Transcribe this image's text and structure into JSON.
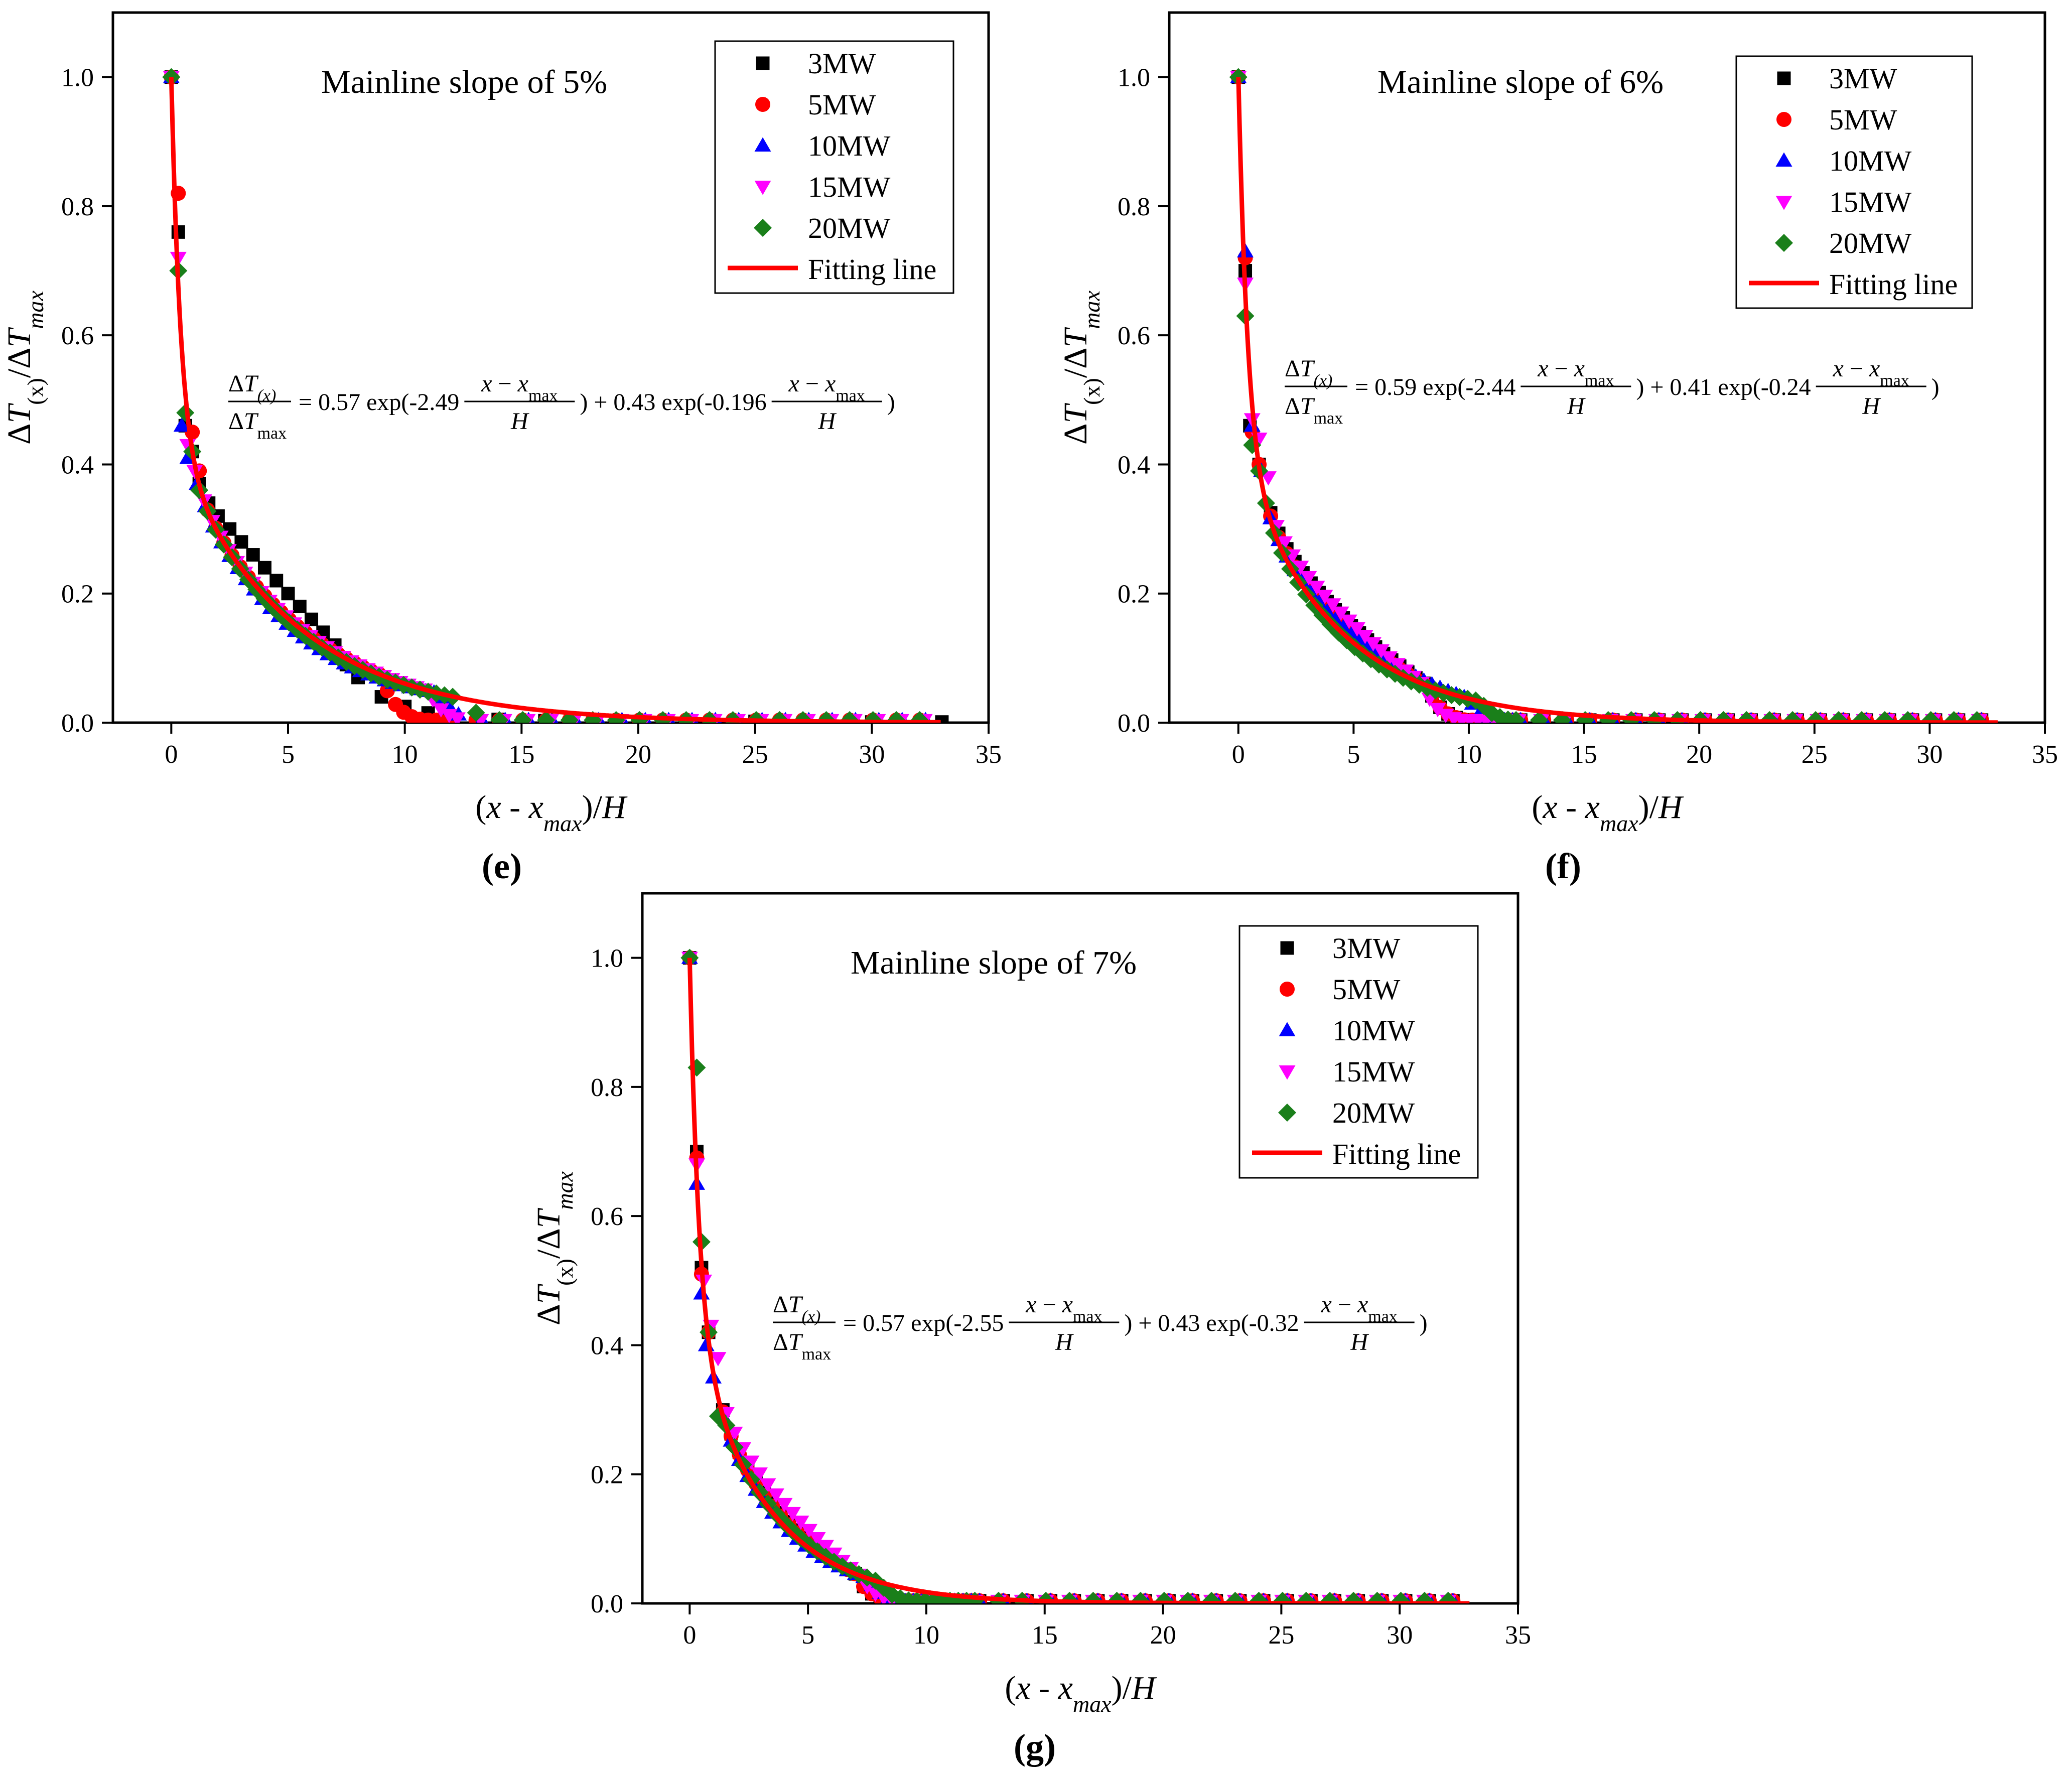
{
  "figure": {
    "labels": [
      "(e)",
      "(f)",
      "(g)"
    ]
  },
  "legend_labels": [
    "3MW",
    "5MW",
    "10MW",
    "15MW",
    "20MW",
    "Fitting line"
  ],
  "colors": {
    "3MW": "#000000",
    "5MW": "#ff0000",
    "10MW": "#0000ff",
    "15MW": "#ff00ff",
    "20MW": "#1a7f1a",
    "fit": "#ff0000"
  },
  "chart_data": [
    {
      "type": "scatter",
      "panel_label": "(e)",
      "title": "Mainline slope of 5%",
      "xlabel": "(x - x_max)/H",
      "ylabel": "ΔT(x)/ΔT_max",
      "xlim": [
        -2.5,
        35
      ],
      "ylim": [
        0,
        1.1
      ],
      "xticks": [
        0,
        5,
        10,
        15,
        20,
        25,
        30,
        35
      ],
      "yticks": [
        0.0,
        0.2,
        0.4,
        0.6,
        0.8,
        1.0
      ],
      "equation": {
        "lhs_num": "ΔT(x)",
        "lhs_den": "ΔTmax",
        "a1": "0.57",
        "b1": "-2.49",
        "a2": "0.43",
        "b2": "-0.196",
        "frac_num": "x − xmax",
        "frac_den": "H"
      },
      "fit": {
        "a1": 0.57,
        "b1": 2.49,
        "a2": 0.43,
        "b2": 0.196
      },
      "series": [
        {
          "name": "3MW",
          "marker": "square",
          "decay_to": 9.2,
          "bias": 0.04,
          "points": [
            [
              0,
              1.0
            ],
            [
              0.3,
              0.76
            ],
            [
              0.6,
              0.46
            ],
            [
              0.9,
              0.42
            ],
            [
              1.2,
              0.37
            ],
            [
              1.6,
              0.34
            ],
            [
              2.0,
              0.32
            ],
            [
              2.5,
              0.3
            ],
            [
              3.0,
              0.28
            ],
            [
              3.5,
              0.26
            ],
            [
              4.0,
              0.24
            ],
            [
              4.5,
              0.22
            ],
            [
              5.0,
              0.2
            ],
            [
              5.5,
              0.18
            ],
            [
              6.0,
              0.16
            ],
            [
              6.5,
              0.14
            ],
            [
              7.0,
              0.12
            ],
            [
              7.5,
              0.09
            ],
            [
              8.0,
              0.07
            ],
            [
              9.0,
              0.04
            ],
            [
              10.0,
              0.025
            ],
            [
              11.0,
              0.015
            ],
            [
              12.0,
              0.01
            ],
            [
              14,
              0.005
            ],
            [
              16,
              0.003
            ],
            [
              20,
              0.002
            ],
            [
              25,
              0.002
            ],
            [
              30,
              0.001
            ],
            [
              33,
              0.001
            ]
          ]
        },
        {
          "name": "5MW",
          "marker": "circle",
          "decay_to": 9.0,
          "bias": 0.0,
          "points": [
            [
              0,
              1.0
            ],
            [
              0.3,
              0.82
            ],
            [
              0.9,
              0.45
            ],
            [
              1.2,
              0.39
            ]
          ]
        },
        {
          "name": "10MW",
          "marker": "triangle-up",
          "decay_to": 11.5,
          "bias": -0.01,
          "points": [
            [
              0,
              1.0
            ],
            [
              0.45,
              0.46
            ],
            [
              0.7,
              0.41
            ],
            [
              1.1,
              0.37
            ]
          ]
        },
        {
          "name": "15MW",
          "marker": "triangle-down",
          "decay_to": 11.0,
          "bias": 0.0,
          "points": [
            [
              0,
              1.0
            ],
            [
              0.3,
              0.72
            ],
            [
              0.7,
              0.43
            ],
            [
              1.0,
              0.39
            ]
          ]
        },
        {
          "name": "20MW",
          "marker": "diamond",
          "decay_to": 12.5,
          "bias": -0.005,
          "points": [
            [
              0,
              1.0
            ],
            [
              0.3,
              0.7
            ],
            [
              0.6,
              0.48
            ],
            [
              0.9,
              0.42
            ],
            [
              1.2,
              0.36
            ]
          ]
        }
      ]
    },
    {
      "type": "scatter",
      "panel_label": "(f)",
      "title": "Mainline slope of 6%",
      "xlabel": "(x - x_max)/H",
      "ylabel": "ΔT(x)/ΔT_max",
      "xlim": [
        -3,
        35
      ],
      "ylim": [
        0,
        1.1
      ],
      "xticks": [
        0,
        5,
        10,
        15,
        20,
        25,
        30,
        35
      ],
      "yticks": [
        0.0,
        0.2,
        0.4,
        0.6,
        0.8,
        1.0
      ],
      "equation": {
        "lhs_num": "ΔT(x)",
        "lhs_den": "ΔTmax",
        "a1": "0.59",
        "b1": "-2.44",
        "a2": "0.41",
        "b2": "-0.24",
        "frac_num": "x − xmax",
        "frac_den": "H"
      },
      "fit": {
        "a1": 0.59,
        "b1": 2.44,
        "a2": 0.41,
        "b2": 0.24
      },
      "series": [
        {
          "name": "3MW",
          "marker": "square",
          "decay_to": 8.2,
          "bias": 0.025,
          "points": [
            [
              0,
              1.0
            ],
            [
              0.3,
              0.7
            ],
            [
              0.5,
              0.46
            ],
            [
              0.9,
              0.4
            ]
          ]
        },
        {
          "name": "5MW",
          "marker": "circle",
          "decay_to": 8.2,
          "bias": 0.015,
          "points": [
            [
              0,
              1.0
            ],
            [
              0.3,
              0.72
            ],
            [
              0.6,
              0.45
            ],
            [
              0.9,
              0.4
            ]
          ]
        },
        {
          "name": "10MW",
          "marker": "triangle-up",
          "decay_to": 10.0,
          "bias": 0.01,
          "points": [
            [
              0,
              1.0
            ],
            [
              0.3,
              0.73
            ],
            [
              0.6,
              0.46
            ],
            [
              1.0,
              0.39
            ]
          ]
        },
        {
          "name": "15MW",
          "marker": "triangle-down",
          "decay_to": 8.0,
          "bias": 0.03,
          "points": [
            [
              0,
              1.0
            ],
            [
              0.3,
              0.68
            ],
            [
              0.6,
              0.47
            ],
            [
              0.9,
              0.44
            ],
            [
              1.3,
              0.38
            ]
          ]
        },
        {
          "name": "20MW",
          "marker": "diamond",
          "decay_to": 10.5,
          "bias": -0.005,
          "points": [
            [
              0,
              1.0
            ],
            [
              0.3,
              0.63
            ],
            [
              0.6,
              0.43
            ],
            [
              0.9,
              0.39
            ],
            [
              1.2,
              0.34
            ]
          ]
        }
      ]
    },
    {
      "type": "scatter",
      "panel_label": "(g)",
      "title": "Mainline slope of 7%",
      "xlabel": "(x - x_max)/H",
      "ylabel": "ΔT(x)/ΔT_max",
      "xlim": [
        -2,
        35
      ],
      "ylim": [
        0,
        1.1
      ],
      "xticks": [
        0,
        5,
        10,
        15,
        20,
        25,
        30,
        35
      ],
      "yticks": [
        0.0,
        0.2,
        0.4,
        0.6,
        0.8,
        1.0
      ],
      "equation": {
        "lhs_num": "ΔT(x)",
        "lhs_den": "ΔTmax",
        "a1": "0.57",
        "b1": "-2.55",
        "a2": "0.43",
        "b2": "-0.32",
        "frac_num": "x − xmax",
        "frac_den": "H"
      },
      "fit": {
        "a1": 0.57,
        "b1": 2.55,
        "a2": 0.43,
        "b2": 0.32
      },
      "series": [
        {
          "name": "3MW",
          "marker": "square",
          "decay_to": 7.0,
          "bias": 0.015,
          "points": [
            [
              0,
              1.0
            ],
            [
              0.3,
              0.7
            ],
            [
              0.5,
              0.52
            ],
            [
              0.8,
              0.42
            ]
          ]
        },
        {
          "name": "5MW",
          "marker": "circle",
          "decay_to": 7.0,
          "bias": 0.01,
          "points": [
            [
              0,
              1.0
            ],
            [
              0.3,
              0.69
            ],
            [
              0.5,
              0.51
            ],
            [
              0.8,
              0.42
            ]
          ]
        },
        {
          "name": "10MW",
          "marker": "triangle-up",
          "decay_to": 7.5,
          "bias": 0.0,
          "points": [
            [
              0,
              1.0
            ],
            [
              0.3,
              0.65
            ],
            [
              0.5,
              0.48
            ],
            [
              0.7,
              0.4
            ],
            [
              1.0,
              0.35
            ]
          ]
        },
        {
          "name": "15MW",
          "marker": "triangle-down",
          "decay_to": 7.2,
          "bias": 0.035,
          "points": [
            [
              0,
              1.0
            ],
            [
              0.3,
              0.68
            ],
            [
              0.6,
              0.5
            ],
            [
              0.9,
              0.43
            ],
            [
              1.2,
              0.38
            ]
          ]
        },
        {
          "name": "20MW",
          "marker": "diamond",
          "decay_to": 8.0,
          "bias": 0.005,
          "points": [
            [
              0,
              1.0
            ],
            [
              0.3,
              0.83
            ],
            [
              0.5,
              0.56
            ],
            [
              0.8,
              0.42
            ],
            [
              1.2,
              0.29
            ]
          ]
        }
      ]
    }
  ]
}
